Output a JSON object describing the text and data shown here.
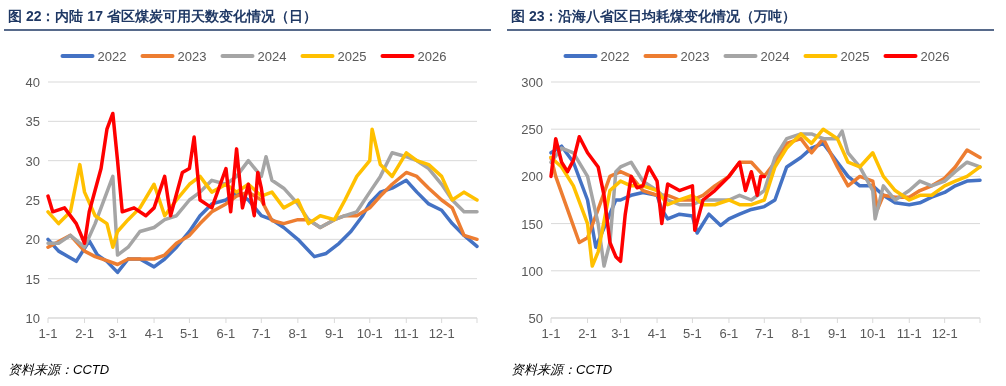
{
  "chart_data": [
    {
      "type": "line",
      "title": "图 22：内陆 17 省区煤炭可用天数变化情况（日）",
      "annotations": [
        "资料来源：CCTD"
      ],
      "legend": "top",
      "grid": "y",
      "ylim": [
        10,
        40
      ],
      "yticks": [
        10,
        15,
        20,
        25,
        30,
        35,
        40
      ],
      "xlim": [
        "--01-01",
        "--12-31"
      ],
      "xticks": [
        {
          "value": "--01-01",
          "label": "1-1"
        },
        {
          "value": "--02-01",
          "label": "2-1"
        },
        {
          "value": "--03-01",
          "label": "3-1"
        },
        {
          "value": "--04-01",
          "label": "4-1"
        },
        {
          "value": "--05-01",
          "label": "5-1"
        },
        {
          "value": "--06-01",
          "label": "6-1"
        },
        {
          "value": "--07-01",
          "label": "7-1"
        },
        {
          "value": "--08-01",
          "label": "8-1"
        },
        {
          "value": "--09-01",
          "label": "9-1"
        },
        {
          "value": "--10-01",
          "label": "10-1"
        },
        {
          "value": "--11-01",
          "label": "11-1"
        },
        {
          "value": "--12-01",
          "label": "12-1"
        },
        {
          "value": "--12-31",
          "label": null
        }
      ],
      "series": [
        {
          "name": "2022",
          "color": "#4472c4",
          "x": [
            "--01-01",
            "--01-10",
            "--01-25",
            "--02-05",
            "--02-12",
            "--02-20",
            "--03-01",
            "--03-10",
            "--03-20",
            "--04-01",
            "--04-10",
            "--04-20",
            "--05-01",
            "--05-10",
            "--05-20",
            "--06-01",
            "--06-10",
            "--06-20",
            "--07-01",
            "--07-10",
            "--07-20",
            "--08-01",
            "--08-15",
            "--08-25",
            "--09-05",
            "--09-15",
            "--09-25",
            "--10-01",
            "--10-10",
            "--10-20",
            "--11-01",
            "--11-10",
            "--11-20",
            "--12-01",
            "--12-10",
            "--12-20",
            "--12-31"
          ],
          "values": [
            20,
            18.5,
            17.2,
            19.8,
            18,
            17.2,
            15.8,
            17.5,
            17.5,
            16.5,
            17.5,
            19,
            21,
            23,
            24.5,
            25,
            26,
            25,
            23,
            22.5,
            21.5,
            20,
            17.8,
            18.2,
            19.5,
            21,
            23,
            24.6,
            26,
            26.5,
            27.5,
            26,
            24.5,
            23.7,
            22,
            20.5,
            19.1
          ]
        },
        {
          "name": "2023",
          "color": "#ed7d31",
          "x": [
            "--01-01",
            "--01-20",
            "--02-01",
            "--02-10",
            "--02-20",
            "--03-01",
            "--03-10",
            "--03-20",
            "--04-01",
            "--04-10",
            "--04-20",
            "--05-01",
            "--05-10",
            "--05-20",
            "--06-01",
            "--06-10",
            "--06-20",
            "--07-01",
            "--07-10",
            "--07-20",
            "--08-01",
            "--08-10",
            "--08-20",
            "--09-01",
            "--09-10",
            "--09-20",
            "--10-01",
            "--10-10",
            "--10-20",
            "--11-01",
            "--11-10",
            "--11-20",
            "--12-01",
            "--12-10",
            "--12-20",
            "--12-31"
          ],
          "values": [
            19,
            20.5,
            18.5,
            17.8,
            17.3,
            16.8,
            17.5,
            17.5,
            17.5,
            18,
            19.5,
            20.5,
            22,
            23.5,
            24.5,
            25.5,
            26,
            25,
            22.4,
            22,
            22.5,
            22.5,
            21.5,
            22.5,
            23,
            23,
            24,
            25.5,
            27,
            28.5,
            28,
            26.5,
            25,
            24,
            20.5,
            20
          ]
        },
        {
          "name": "2024",
          "color": "#a5a5a5",
          "x": [
            "--01-01",
            "--01-10",
            "--01-20",
            "--02-01",
            "--02-10",
            "--02-20",
            "--02-25",
            "--03-01",
            "--03-10",
            "--03-20",
            "--04-01",
            "--04-10",
            "--04-20",
            "--05-01",
            "--05-10",
            "--05-20",
            "--06-01",
            "--06-10",
            "--06-20",
            "--07-01",
            "--07-05",
            "--07-10",
            "--07-20",
            "--08-01",
            "--08-10",
            "--08-20",
            "--09-01",
            "--09-10",
            "--09-20",
            "--10-01",
            "--10-10",
            "--10-20",
            "--11-01",
            "--11-10",
            "--11-20",
            "--12-01",
            "--12-10",
            "--12-20",
            "--12-31"
          ],
          "values": [
            19.5,
            19.5,
            20.5,
            19,
            22,
            26,
            28,
            18,
            19,
            21,
            21.5,
            22.5,
            23,
            25,
            26,
            27.5,
            27,
            28,
            30,
            28,
            30.5,
            27.5,
            26.5,
            24.5,
            22.5,
            21.5,
            22.5,
            23,
            23.5,
            26,
            28,
            31,
            30.5,
            30,
            29,
            27,
            25,
            23.5,
            23.5
          ]
        },
        {
          "name": "2025",
          "color": "#ffc000",
          "x": [
            "--01-01",
            "--01-10",
            "--01-20",
            "--01-28",
            "--02-01",
            "--02-10",
            "--02-20",
            "--02-25",
            "--03-01",
            "--03-10",
            "--03-20",
            "--04-01",
            "--04-10",
            "--04-20",
            "--05-01",
            "--05-10",
            "--05-20",
            "--06-01",
            "--06-10",
            "--06-20",
            "--07-01",
            "--07-10",
            "--07-20",
            "--08-01",
            "--08-10",
            "--08-20",
            "--09-01",
            "--09-10",
            "--09-20",
            "--10-01",
            "--10-03",
            "--10-10",
            "--10-20",
            "--11-01",
            "--11-10",
            "--11-20",
            "--12-01",
            "--12-10",
            "--12-20",
            "--12-31"
          ],
          "values": [
            23.5,
            22,
            23.5,
            29.5,
            26,
            23,
            22,
            19,
            21,
            22.5,
            24,
            27,
            23,
            25,
            27,
            28,
            26,
            27,
            26,
            27,
            25.5,
            26,
            24,
            25,
            22,
            23,
            22.5,
            25,
            28,
            30,
            34,
            29.5,
            28,
            31,
            30,
            29.5,
            28,
            25,
            26,
            25
          ]
        },
        {
          "name": "2026",
          "color": "#ff0000",
          "x": [
            "--01-01",
            "--01-05",
            "--01-15",
            "--01-25",
            "--02-01",
            "--02-05",
            "--02-15",
            "--02-20",
            "--02-25",
            "--03-01",
            "--03-05",
            "--03-15",
            "--03-25",
            "--04-01",
            "--04-10",
            "--04-15",
            "--04-25",
            "--05-01",
            "--05-05",
            "--05-10",
            "--05-20",
            "--06-01",
            "--06-05",
            "--06-10",
            "--06-15",
            "--06-20",
            "--06-25",
            "--06-28",
            "--07-01",
            "--07-03"
          ],
          "values": [
            25.5,
            23.5,
            24,
            22,
            19.5,
            23.5,
            29,
            34,
            36,
            30,
            23.5,
            24,
            23,
            24,
            28,
            23,
            28.5,
            29,
            33,
            25,
            24,
            29,
            23.5,
            31.5,
            24,
            27,
            23,
            28.5,
            26.5,
            24.5
          ]
        }
      ]
    },
    {
      "type": "line",
      "title": "图 23：沿海八省区日均耗煤变化情况（万吨）",
      "annotations": [
        "资料来源：CCTD"
      ],
      "legend": "top",
      "grid": "y",
      "ylim": [
        50,
        300
      ],
      "yticks": [
        50,
        100,
        150,
        200,
        250,
        300
      ],
      "xlim": [
        "--01-01",
        "--12-31"
      ],
      "xticks": [
        {
          "value": "--01-01",
          "label": "1-1"
        },
        {
          "value": "--02-01",
          "label": "2-1"
        },
        {
          "value": "--03-01",
          "label": "3-1"
        },
        {
          "value": "--04-01",
          "label": "4-1"
        },
        {
          "value": "--05-01",
          "label": "5-1"
        },
        {
          "value": "--06-01",
          "label": "6-1"
        },
        {
          "value": "--07-01",
          "label": "7-1"
        },
        {
          "value": "--08-01",
          "label": "8-1"
        },
        {
          "value": "--09-01",
          "label": "9-1"
        },
        {
          "value": "--10-01",
          "label": "10-1"
        },
        {
          "value": "--11-01",
          "label": "11-1"
        },
        {
          "value": "--12-01",
          "label": "12-1"
        },
        {
          "value": "--12-31",
          "label": null
        }
      ],
      "series": [
        {
          "name": "2022",
          "color": "#4472c4",
          "x": [
            "--01-01",
            "--01-10",
            "--01-20",
            "--02-01",
            "--02-08",
            "--02-25",
            "--03-01",
            "--03-10",
            "--03-20",
            "--04-01",
            "--04-05",
            "--04-10",
            "--04-20",
            "--05-01",
            "--05-05",
            "--05-15",
            "--05-25",
            "--06-01",
            "--06-10",
            "--06-20",
            "--07-01",
            "--07-10",
            "--07-20",
            "--08-01",
            "--08-10",
            "--08-20",
            "--09-01",
            "--09-10",
            "--09-20",
            "--10-01",
            "--10-10",
            "--10-20",
            "--11-01",
            "--11-10",
            "--11-20",
            "--12-01",
            "--12-10",
            "--12-20",
            "--12-31"
          ],
          "values": [
            225,
            232,
            215,
            175,
            125,
            175,
            175,
            180,
            183,
            180,
            165,
            155,
            160,
            158,
            140,
            160,
            148,
            155,
            160,
            165,
            168,
            175,
            210,
            220,
            230,
            235,
            215,
            200,
            190,
            190,
            180,
            172,
            170,
            172,
            178,
            183,
            190,
            195,
            196
          ]
        },
        {
          "name": "2023",
          "color": "#ed7d31",
          "x": [
            "--01-01",
            "--01-05",
            "--01-15",
            "--01-25",
            "--02-01",
            "--02-10",
            "--02-20",
            "--03-01",
            "--03-10",
            "--03-20",
            "--04-01",
            "--04-10",
            "--04-20",
            "--05-01",
            "--05-10",
            "--05-20",
            "--06-01",
            "--06-10",
            "--06-20",
            "--07-01",
            "--07-10",
            "--07-20",
            "--08-01",
            "--08-10",
            "--08-20",
            "--09-01",
            "--09-10",
            "--09-20",
            "--10-01",
            "--10-05",
            "--10-10",
            "--10-20",
            "--11-01",
            "--11-10",
            "--11-20",
            "--12-01",
            "--12-10",
            "--12-20",
            "--12-31"
          ],
          "values": [
            220,
            200,
            165,
            130,
            135,
            165,
            200,
            205,
            200,
            185,
            180,
            180,
            175,
            175,
            180,
            190,
            200,
            215,
            215,
            200,
            215,
            235,
            240,
            225,
            240,
            210,
            190,
            200,
            195,
            165,
            180,
            178,
            178,
            185,
            190,
            198,
            210,
            228,
            220
          ]
        },
        {
          "name": "2024",
          "color": "#a5a5a5",
          "x": [
            "--01-01",
            "--01-10",
            "--01-20",
            "--02-01",
            "--02-10",
            "--02-15",
            "--02-20",
            "--02-25",
            "--03-01",
            "--03-10",
            "--03-20",
            "--04-01",
            "--04-10",
            "--04-20",
            "--05-01",
            "--05-10",
            "--05-20",
            "--06-01",
            "--06-10",
            "--06-20",
            "--07-01",
            "--07-10",
            "--07-20",
            "--08-01",
            "--08-10",
            "--08-20",
            "--09-01",
            "--09-05",
            "--09-10",
            "--09-20",
            "--10-01",
            "--10-03",
            "--10-10",
            "--10-20",
            "--11-01",
            "--11-10",
            "--11-20",
            "--12-01",
            "--12-10",
            "--12-20",
            "--12-31"
          ],
          "values": [
            215,
            230,
            225,
            200,
            150,
            105,
            130,
            205,
            210,
            215,
            195,
            185,
            175,
            170,
            170,
            175,
            175,
            175,
            180,
            175,
            185,
            220,
            240,
            245,
            245,
            240,
            240,
            248,
            225,
            210,
            185,
            155,
            190,
            175,
            185,
            195,
            190,
            195,
            205,
            215,
            210
          ]
        },
        {
          "name": "2025",
          "color": "#ffc000",
          "x": [
            "--01-01",
            "--01-10",
            "--01-20",
            "--02-01",
            "--02-05",
            "--02-10",
            "--02-20",
            "--03-01",
            "--03-10",
            "--03-20",
            "--04-01",
            "--04-10",
            "--04-20",
            "--05-01",
            "--05-10",
            "--05-20",
            "--06-01",
            "--06-10",
            "--06-20",
            "--07-01",
            "--07-10",
            "--07-20",
            "--08-01",
            "--08-10",
            "--08-20",
            "--09-01",
            "--09-10",
            "--09-20",
            "--10-01",
            "--10-10",
            "--10-20",
            "--11-01",
            "--11-10",
            "--11-20",
            "--12-01",
            "--12-10",
            "--12-20",
            "--12-31"
          ],
          "values": [
            220,
            210,
            190,
            150,
            105,
            120,
            185,
            195,
            190,
            190,
            185,
            170,
            175,
            180,
            170,
            170,
            175,
            170,
            170,
            175,
            210,
            230,
            245,
            235,
            250,
            240,
            215,
            210,
            225,
            200,
            185,
            175,
            180,
            180,
            190,
            195,
            200,
            210
          ]
        },
        {
          "name": "2026",
          "color": "#ff0000",
          "x": [
            "--01-01",
            "--01-05",
            "--01-10",
            "--01-15",
            "--01-20",
            "--01-25",
            "--02-01",
            "--02-10",
            "--02-15",
            "--02-20",
            "--02-25",
            "--03-01",
            "--03-05",
            "--03-10",
            "--03-15",
            "--03-20",
            "--03-25",
            "--04-01",
            "--04-05",
            "--04-10",
            "--04-20",
            "--05-01",
            "--05-03",
            "--05-10",
            "--05-20",
            "--06-01",
            "--06-10",
            "--06-15",
            "--06-20",
            "--06-25",
            "--06-28",
            "--07-01"
          ],
          "values": [
            200,
            240,
            215,
            205,
            217,
            242,
            225,
            210,
            180,
            130,
            115,
            110,
            160,
            200,
            188,
            190,
            210,
            195,
            150,
            192,
            185,
            190,
            143,
            175,
            185,
            200,
            215,
            185,
            205,
            180,
            200,
            200
          ]
        }
      ]
    }
  ]
}
